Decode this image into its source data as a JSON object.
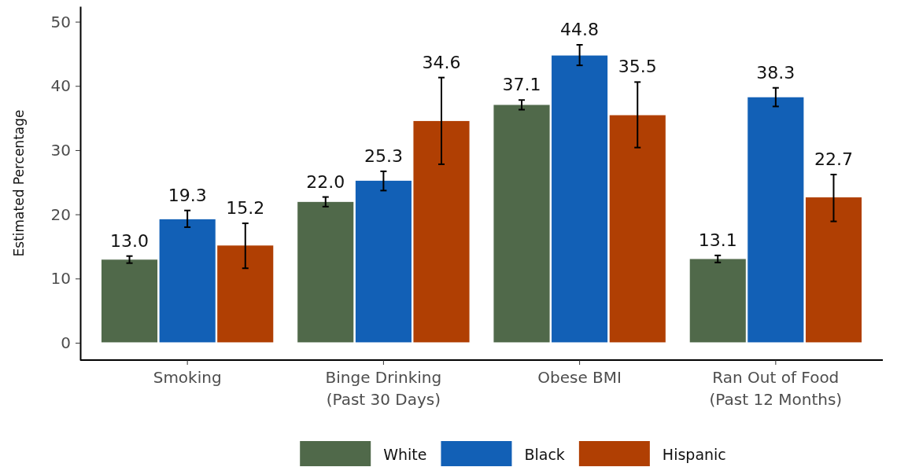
{
  "chart_data": {
    "type": "bar",
    "ylabel": "Estimated Percentage",
    "categories": [
      "Smoking",
      "Binge Drinking\n(Past 30 Days)",
      "Obese BMI",
      "Ran Out of Food\n(Past 12 Months)"
    ],
    "series": [
      {
        "name": "White",
        "color": "#50694a",
        "values": [
          13.0,
          22.0,
          37.1,
          13.1
        ],
        "errors": [
          [
            12.4,
            13.5
          ],
          [
            21.2,
            22.7
          ],
          [
            36.3,
            37.8
          ],
          [
            12.5,
            13.6
          ]
        ],
        "value_labels": [
          "13.0",
          "22.0",
          "37.1",
          "13.1"
        ]
      },
      {
        "name": "Black",
        "color": "#1260b6",
        "values": [
          19.3,
          25.3,
          44.8,
          38.3
        ],
        "errors": [
          [
            18.0,
            20.6
          ],
          [
            23.7,
            26.7
          ],
          [
            43.2,
            46.4
          ],
          [
            36.8,
            39.7
          ]
        ],
        "value_labels": [
          "19.3",
          "25.3",
          "44.8",
          "38.3"
        ]
      },
      {
        "name": "Hispanic",
        "color": "#b03f03",
        "values": [
          15.2,
          34.6,
          35.5,
          22.7
        ],
        "errors": [
          [
            11.6,
            18.6
          ],
          [
            27.8,
            41.3
          ],
          [
            30.4,
            40.6
          ],
          [
            18.9,
            26.2
          ]
        ],
        "value_labels": [
          "15.2",
          "34.6",
          "35.5",
          "22.7"
        ]
      }
    ],
    "ylim": [
      -2.7,
      52.4
    ],
    "yticks": [
      0,
      10,
      20,
      30,
      40,
      50
    ],
    "legend": "bottom",
    "grid": false
  }
}
